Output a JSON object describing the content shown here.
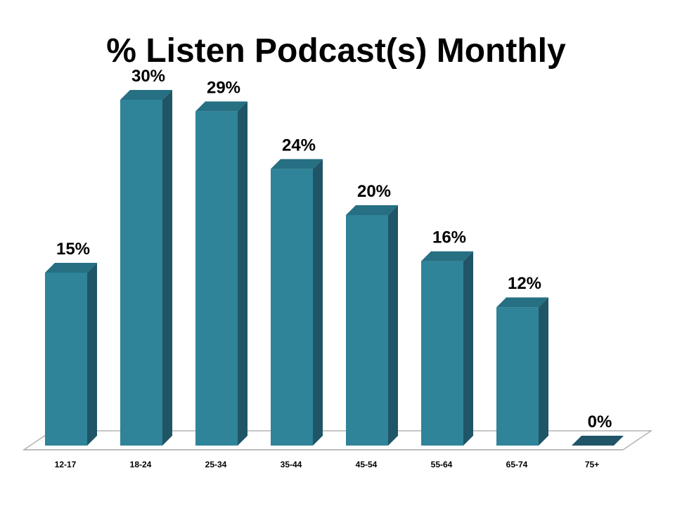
{
  "chart_data": {
    "type": "bar",
    "title": "% Listen Podcast(s) Monthly",
    "categories": [
      "12-17",
      "18-24",
      "25-34",
      "35-44",
      "45-54",
      "55-64",
      "65-74",
      "75+"
    ],
    "values": [
      15,
      30,
      29,
      24,
      20,
      16,
      12,
      0
    ],
    "value_labels": [
      "15%",
      "30%",
      "29%",
      "24%",
      "20%",
      "16%",
      "12%",
      "0%"
    ],
    "xlabel": "",
    "ylabel": "",
    "ylim": [
      0,
      30
    ],
    "grid": false,
    "legend": "none",
    "style": "3d-bar",
    "colors": {
      "bar_front": "#2f8499",
      "bar_side": "#1f5566",
      "bar_top": "#276f82",
      "text": "#000000",
      "floor": "#ffffff",
      "floor_edge": "#b3b3b3"
    }
  }
}
